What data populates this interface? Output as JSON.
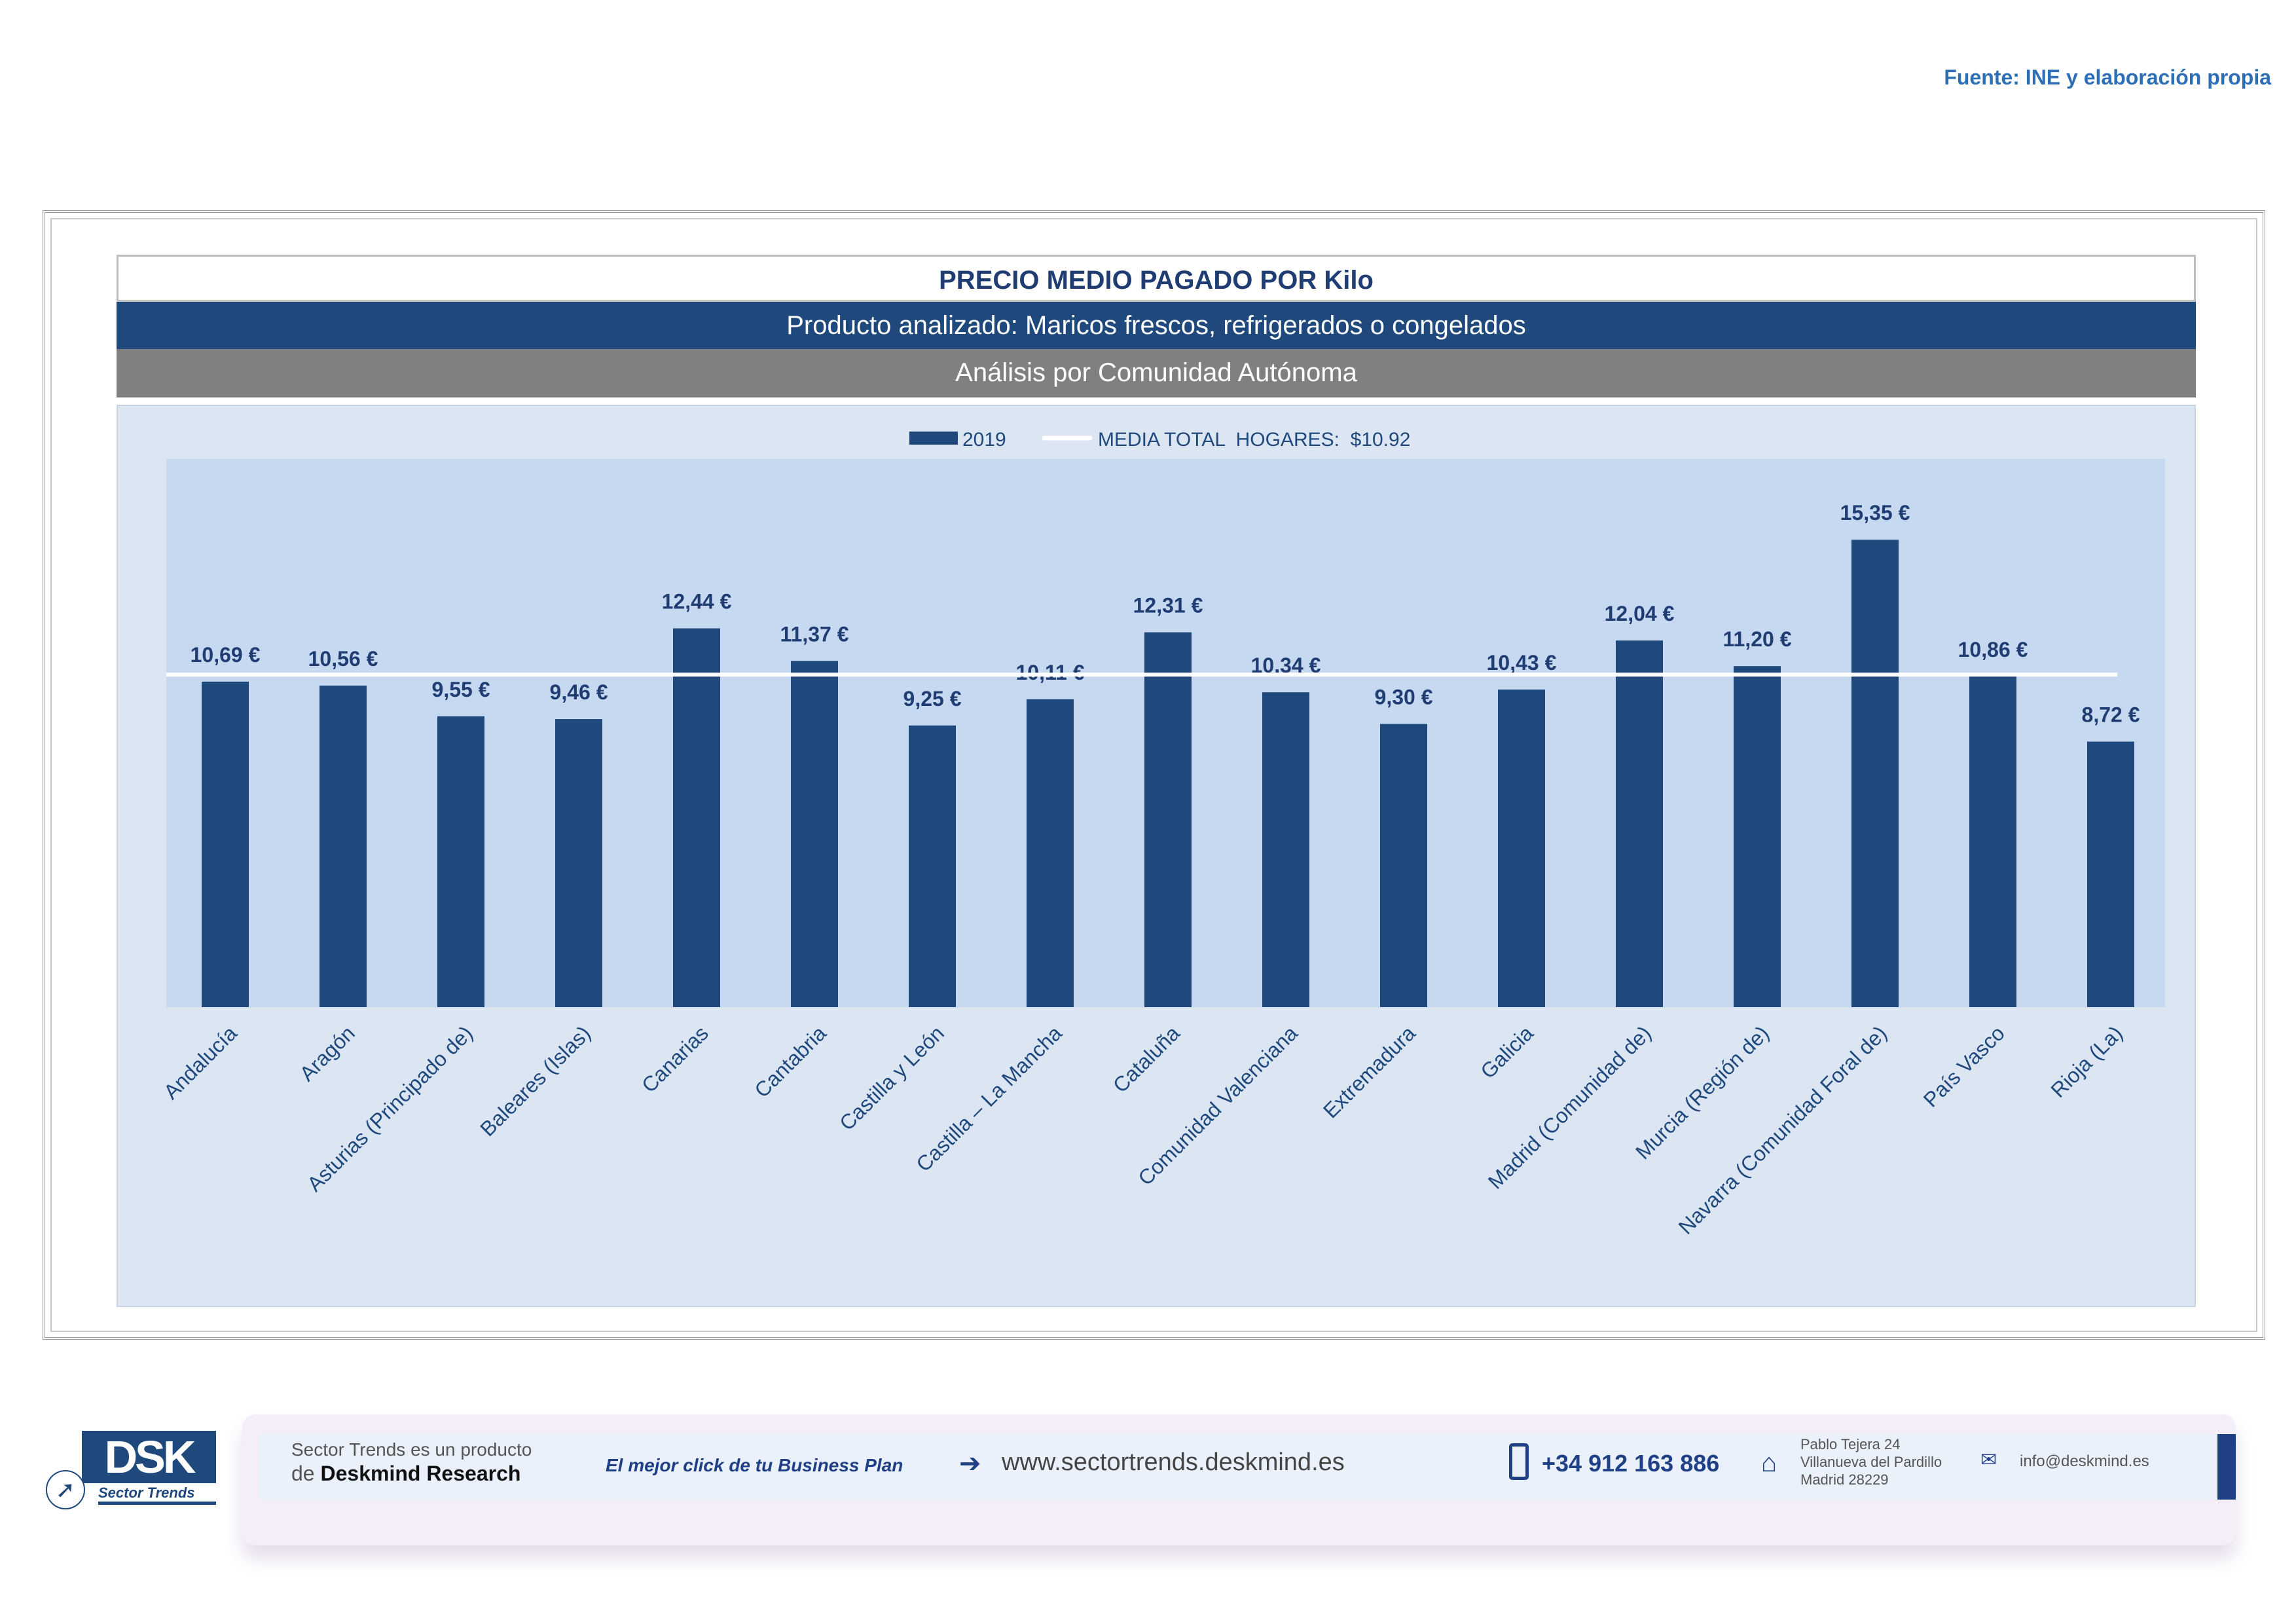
{
  "source": "Fuente: INE y elaboración propia",
  "header": {
    "title": "PRECIO MEDIO PAGADO POR Kilo",
    "product": "Producto analizado: Maricos frescos, refrigerados o congelados",
    "analysis": "Análisis por Comunidad Autónoma"
  },
  "chart_data": {
    "type": "bar",
    "categories": [
      "Andalucía",
      "Aragón",
      "Asturias (Principado de)",
      "Baleares (Islas)",
      "Canarias",
      "Cantabria",
      "Castilla y León",
      "Castilla – La Mancha",
      "Cataluña",
      "Comunidad Valenciana",
      "Extremadura",
      "Galicia",
      "Madrid (Comunidad de)",
      "Murcia (Región de)",
      "Navarra (Comunidad Foral de)",
      "País Vasco",
      "Rioja (La)"
    ],
    "series": [
      {
        "name": "2019",
        "values": [
          10.69,
          10.56,
          9.55,
          9.46,
          12.44,
          11.37,
          9.25,
          10.11,
          12.31,
          10.34,
          9.3,
          10.43,
          12.04,
          11.2,
          15.35,
          10.86,
          8.72
        ]
      }
    ],
    "data_labels": [
      "10,69 €",
      "10,56 €",
      "9,55 €",
      "9,46 €",
      "12,44 €",
      "11,37 €",
      "9,25 €",
      "10,11 €",
      "12,31 €",
      "10,34 €",
      "9,30 €",
      "10,43 €",
      "12,04 €",
      "11,20 €",
      "15,35 €",
      "10,86 €",
      "8,72 €"
    ],
    "reference_line": {
      "name": "MEDIA TOTAL  HOGARES:  $10.92",
      "value": 10.92
    },
    "legend": "top",
    "ylim": [
      0,
      18
    ],
    "colors": {
      "bar": "#1f497d",
      "line": "#ffffff",
      "plot_bg": "#c6d9f0"
    }
  },
  "footer": {
    "product_line1": "Sector Trends es un producto",
    "product_line2_prefix": "de ",
    "product_line2_brand": "Deskmind Research",
    "slogan": "El mejor click de tu Business Plan",
    "website": "www.sectortrends.deskmind.es",
    "phone": "+34 912 163 886",
    "address": [
      "Pablo Tejera 24",
      "Villanueva del Pardillo",
      "Madrid 28229"
    ],
    "email": "info@deskmind.es",
    "logo_text": "DSK",
    "logo_sub": "Sector Trends"
  }
}
